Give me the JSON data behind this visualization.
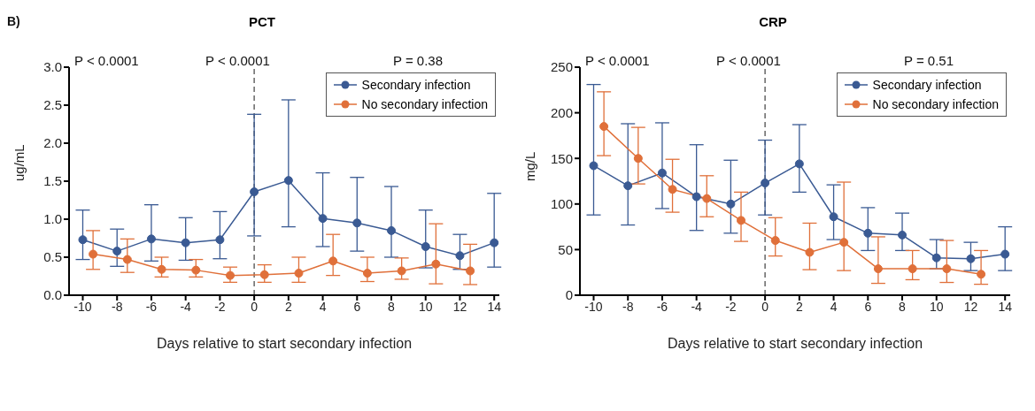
{
  "chart_data": [
    {
      "type": "line",
      "title": "PCT",
      "xlabel": "Days relative to start secondary infection",
      "ylabel": "ug/mL",
      "annotations": [
        "B)",
        "P < 0.0001",
        "P < 0.0001",
        "P = 0.38"
      ],
      "xlim": [
        -10.8,
        14.3
      ],
      "xticks": [
        -10,
        -8,
        -6,
        -4,
        -2,
        0,
        2,
        4,
        6,
        8,
        10,
        12,
        14
      ],
      "ylim": [
        0,
        3
      ],
      "yticks": [
        {
          "value": 0,
          "label": "0.0"
        },
        0.5,
        {
          "value": 1,
          "label": "1.0"
        },
        1.5,
        {
          "value": 2,
          "label": "2.0"
        },
        2.5,
        {
          "value": 3,
          "label": "3.0"
        }
      ],
      "grid": false,
      "legend": "top right",
      "marker": "circle",
      "line_style": "solid",
      "ref_lines": [
        {
          "axis": "x",
          "value": 0,
          "color": "#666666",
          "line_style": "dashed"
        }
      ],
      "series": [
        {
          "name": "Secondary infection",
          "color": "#3a5a93",
          "x": [
            -10,
            -8,
            -6,
            -4,
            -2,
            0,
            2,
            4,
            6,
            8,
            10,
            12,
            14
          ],
          "values": [
            0.73,
            0.58,
            0.74,
            0.69,
            0.73,
            1.36,
            1.51,
            1.01,
            0.95,
            0.85,
            0.64,
            0.52,
            0.69
          ],
          "errors": [
            [
              0.47,
              1.12
            ],
            [
              0.38,
              0.87
            ],
            [
              0.45,
              1.19
            ],
            [
              0.46,
              1.02
            ],
            [
              0.48,
              1.1
            ],
            [
              0.78,
              2.38
            ],
            [
              0.9,
              2.57
            ],
            [
              0.64,
              1.61
            ],
            [
              0.58,
              1.55
            ],
            [
              0.5,
              1.43
            ],
            [
              0.36,
              1.12
            ],
            [
              0.34,
              0.8
            ],
            [
              0.37,
              1.34
            ]
          ]
        },
        {
          "name": "No secondary infection",
          "color": "#e0703a",
          "x": [
            -9.4,
            -7.4,
            -5.4,
            -3.4,
            -1.4,
            0.6,
            2.6,
            4.6,
            6.6,
            8.6,
            10.6,
            12.6
          ],
          "values": [
            0.54,
            0.47,
            0.34,
            0.33,
            0.26,
            0.27,
            0.29,
            0.45,
            0.29,
            0.32,
            0.41,
            0.32
          ],
          "errors": [
            [
              0.34,
              0.85
            ],
            [
              0.3,
              0.74
            ],
            [
              0.24,
              0.5
            ],
            [
              0.24,
              0.47
            ],
            [
              0.17,
              0.37
            ],
            [
              0.17,
              0.4
            ],
            [
              0.17,
              0.5
            ],
            [
              0.26,
              0.8
            ],
            [
              0.18,
              0.5
            ],
            [
              0.21,
              0.49
            ],
            [
              0.15,
              0.94
            ],
            [
              0.14,
              0.67
            ]
          ]
        }
      ]
    },
    {
      "type": "line",
      "title": "CRP",
      "xlabel": "Days relative to start secondary infection",
      "ylabel": "mg/L",
      "annotations": [
        "P < 0.0001",
        "P < 0.0001",
        "P = 0.51"
      ],
      "xlim": [
        -10.8,
        14.3
      ],
      "xticks": [
        -10,
        -8,
        -6,
        -4,
        -2,
        0,
        2,
        4,
        6,
        8,
        10,
        12,
        14
      ],
      "ylim": [
        0,
        250
      ],
      "yticks": [
        0,
        50,
        100,
        150,
        200,
        250
      ],
      "grid": false,
      "legend": "top right",
      "marker": "circle",
      "line_style": "solid",
      "ref_lines": [
        {
          "axis": "x",
          "value": 0,
          "color": "#666666",
          "line_style": "dashed"
        }
      ],
      "series": [
        {
          "name": "Secondary infection",
          "color": "#3a5a93",
          "x": [
            -10,
            -8,
            -6,
            -4,
            -2,
            0,
            2,
            4,
            6,
            8,
            10,
            12,
            14
          ],
          "values": [
            142,
            120,
            134,
            108,
            100,
            123,
            144,
            86,
            68,
            66,
            41,
            40,
            45
          ],
          "errors": [
            [
              88,
              231
            ],
            [
              77,
              188
            ],
            [
              95,
              189
            ],
            [
              71,
              165
            ],
            [
              68,
              148
            ],
            [
              88,
              170
            ],
            [
              113,
              187
            ],
            [
              61,
              121
            ],
            [
              49,
              96
            ],
            [
              49,
              90
            ],
            [
              29,
              61
            ],
            [
              27,
              58
            ],
            [
              27,
              75
            ]
          ]
        },
        {
          "name": "No secondary infection",
          "color": "#e0703a",
          "x": [
            -9.4,
            -7.4,
            -5.4,
            -3.4,
            -1.4,
            0.6,
            2.6,
            4.6,
            6.6,
            8.6,
            10.6,
            12.6
          ],
          "values": [
            185,
            150,
            116,
            106,
            82,
            60,
            47,
            58,
            29,
            29,
            29,
            23
          ],
          "errors": [
            [
              153,
              223
            ],
            [
              122,
              184
            ],
            [
              91,
              149
            ],
            [
              86,
              131
            ],
            [
              59,
              113
            ],
            [
              43,
              85
            ],
            [
              28,
              79
            ],
            [
              27,
              124
            ],
            [
              13,
              64
            ],
            [
              17,
              49
            ],
            [
              14,
              60
            ],
            [
              12,
              49
            ]
          ]
        }
      ]
    }
  ]
}
